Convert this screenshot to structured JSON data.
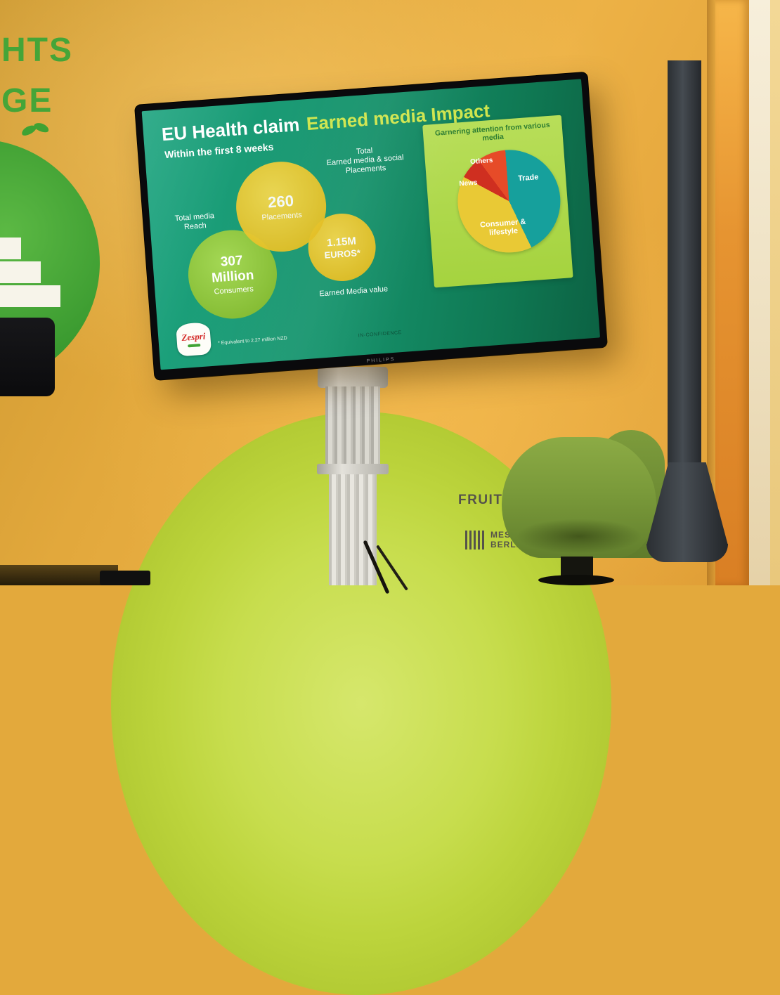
{
  "wall": {
    "word_fragments": [
      "HTS",
      "GE"
    ],
    "fruit_text": "FRUIT",
    "messe_line1": "MESSE",
    "messe_line2": "BERLIN"
  },
  "tv": {
    "brand": "PHILIPS"
  },
  "slide": {
    "title_white": "EU Health claim",
    "title_accent": "Earned media Impact",
    "subtitle": "Within the first 8 weeks",
    "stats": {
      "placements": {
        "value": "260",
        "label": "Placements",
        "caption": "Total\nEarned media & social\nPlacements"
      },
      "reach": {
        "value_line1": "307",
        "value_line2": "Million",
        "label": "Consumers",
        "caption": "Total media\nReach"
      },
      "media_value": {
        "value_line1": "1.15M",
        "value_line2": "EUROS*",
        "caption": "Earned Media value"
      }
    },
    "footnote": "* Equivalent to 2.27 million NZD",
    "classification": "IN-CONFIDENCE",
    "logo_text": "Zespri"
  },
  "chart_data": {
    "type": "pie",
    "title": "Garnering attention from various media",
    "slices": [
      {
        "label": "Trade",
        "percent": 44,
        "color": "#16a09c"
      },
      {
        "label": "Consumer & lifestyle",
        "percent": 40,
        "color": "#e9c935"
      },
      {
        "label": "News",
        "percent": 7,
        "color": "#cf2f20"
      },
      {
        "label": "Others",
        "percent": 9,
        "color": "#e64b28"
      }
    ],
    "legend_position": "labels-on-slices"
  },
  "colors": {
    "slide_bg": "#14926b",
    "accent_title": "#cfe54d",
    "bubble_yellow": "#e6c22a",
    "bubble_green": "#86bd35",
    "panel_green": "#a5d33f",
    "wall_orange": "#e8a93c"
  }
}
